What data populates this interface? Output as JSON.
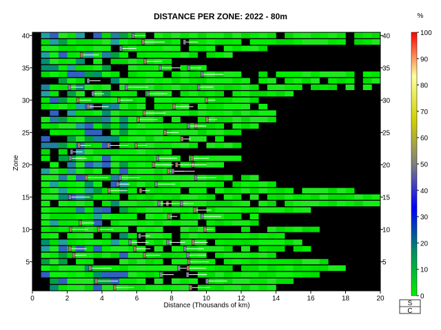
{
  "chart_data": {
    "type": "heatmap",
    "title": "DISTANCE PER ZONE: 2022 - 80m",
    "xlabel": "Distance (Thousands of km)",
    "ylabel": "Zone",
    "xlim": [
      0,
      20
    ],
    "ylim": [
      0.5,
      40.5
    ],
    "x_ticks": [
      0,
      2,
      4,
      6,
      8,
      10,
      12,
      14,
      16,
      18,
      20
    ],
    "y_ticks": [
      5,
      10,
      15,
      20,
      25,
      30,
      35,
      40
    ],
    "colorbar": {
      "unit_label": "%",
      "range": [
        0,
        100
      ],
      "ticks": [
        0,
        10,
        20,
        30,
        40,
        50,
        60,
        70,
        80,
        90,
        100
      ],
      "stops": [
        "#00ee00",
        "#009060",
        "#0000ff",
        "#808080",
        "#d0d000",
        "#ffffa0",
        "#ff0000"
      ]
    },
    "legend": {
      "entries": [
        "S",
        "C"
      ],
      "placement": "bottom-right"
    },
    "no_data_color": "#000000",
    "zone_extent_km_thousands": [
      {
        "zone": 1,
        "max": 13.6
      },
      {
        "zone": 2,
        "max": 15.0
      },
      {
        "zone": 3,
        "max": 16.5
      },
      {
        "zone": 4,
        "max": 18.0
      },
      {
        "zone": 5,
        "max": 17.0
      },
      {
        "zone": 6,
        "max": 14.0
      },
      {
        "zone": 7,
        "max": 16.5
      },
      {
        "zone": 8,
        "max": 15.5
      },
      {
        "zone": 9,
        "max": 14.5
      },
      {
        "zone": 10,
        "max": 16.5
      },
      {
        "zone": 11,
        "max": 13.0
      },
      {
        "zone": 12,
        "max": 13.0
      },
      {
        "zone": 13,
        "max": 16.0
      },
      {
        "zone": 14,
        "max": 20.0
      },
      {
        "zone": 15,
        "max": 20.0
      },
      {
        "zone": 16,
        "max": 18.5
      },
      {
        "zone": 17,
        "max": 14.0
      },
      {
        "zone": 18,
        "max": 13.0
      },
      {
        "zone": 19,
        "max": 8.0
      },
      {
        "zone": 20,
        "max": 11.0
      },
      {
        "zone": 21,
        "max": 12.0
      },
      {
        "zone": 22,
        "max": 8.0
      },
      {
        "zone": 23,
        "max": 12.0
      },
      {
        "zone": 24,
        "max": 11.0
      },
      {
        "zone": 25,
        "max": 12.0
      },
      {
        "zone": 26,
        "max": 13.0
      },
      {
        "zone": 27,
        "max": 14.0
      },
      {
        "zone": 28,
        "max": 14.0
      },
      {
        "zone": 29,
        "max": 14.0
      },
      {
        "zone": 30,
        "max": 13.0
      },
      {
        "zone": 31,
        "max": 15.0
      },
      {
        "zone": 32,
        "max": 20.0
      },
      {
        "zone": 33,
        "max": 20.0
      },
      {
        "zone": 34,
        "max": 20.0
      },
      {
        "zone": 35,
        "max": 10.0
      },
      {
        "zone": 36,
        "max": 8.0
      },
      {
        "zone": 37,
        "max": 12.0
      },
      {
        "zone": 38,
        "max": 14.0
      },
      {
        "zone": 39,
        "max": 20.0
      },
      {
        "zone": 40,
        "max": 20.0
      }
    ]
  }
}
